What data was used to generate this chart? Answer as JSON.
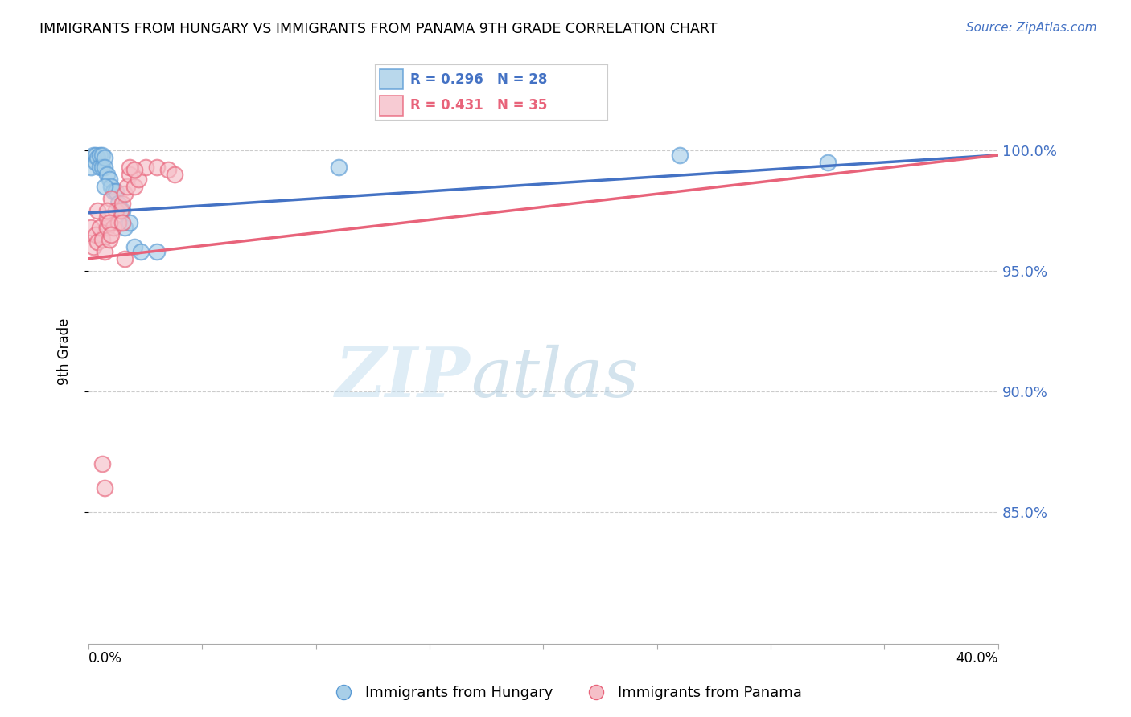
{
  "title": "IMMIGRANTS FROM HUNGARY VS IMMIGRANTS FROM PANAMA 9TH GRADE CORRELATION CHART",
  "source": "Source: ZipAtlas.com",
  "ylabel": "9th Grade",
  "ytick_labels": [
    "100.0%",
    "95.0%",
    "90.0%",
    "85.0%"
  ],
  "ytick_values": [
    1.0,
    0.95,
    0.9,
    0.85
  ],
  "xlim": [
    0.0,
    0.4
  ],
  "ylim": [
    0.795,
    1.038
  ],
  "legend_blue_r": "R = 0.296",
  "legend_blue_n": "N = 28",
  "legend_pink_r": "R = 0.431",
  "legend_pink_n": "N = 35",
  "blue_label": "Immigrants from Hungary",
  "pink_label": "Immigrants from Panama",
  "blue_color": "#a8cfe8",
  "pink_color": "#f5bfc8",
  "blue_edge_color": "#5b9bd5",
  "pink_edge_color": "#e8637a",
  "blue_line_color": "#4472c4",
  "pink_line_color": "#e8637a",
  "blue_trend_x": [
    0.0,
    0.4
  ],
  "blue_trend_y": [
    0.974,
    0.998
  ],
  "pink_trend_x": [
    0.0,
    0.4
  ],
  "pink_trend_y": [
    0.955,
    0.998
  ],
  "hungary_x": [
    0.001,
    0.002,
    0.003,
    0.003,
    0.004,
    0.005,
    0.005,
    0.006,
    0.006,
    0.007,
    0.007,
    0.008,
    0.009,
    0.01,
    0.011,
    0.012,
    0.013,
    0.014,
    0.015,
    0.016,
    0.018,
    0.02,
    0.023,
    0.03,
    0.11,
    0.26,
    0.325,
    0.007
  ],
  "hungary_y": [
    0.993,
    0.998,
    0.998,
    0.995,
    0.997,
    0.998,
    0.993,
    0.998,
    0.993,
    0.997,
    0.993,
    0.99,
    0.988,
    0.985,
    0.983,
    0.983,
    0.978,
    0.975,
    0.975,
    0.968,
    0.97,
    0.96,
    0.958,
    0.958,
    0.993,
    0.998,
    0.995,
    0.985
  ],
  "panama_x": [
    0.001,
    0.002,
    0.003,
    0.004,
    0.004,
    0.005,
    0.006,
    0.007,
    0.008,
    0.008,
    0.009,
    0.01,
    0.011,
    0.012,
    0.013,
    0.014,
    0.015,
    0.016,
    0.016,
    0.017,
    0.018,
    0.02,
    0.022,
    0.025,
    0.03,
    0.035,
    0.038,
    0.006,
    0.007,
    0.008,
    0.009,
    0.01,
    0.015,
    0.018,
    0.02
  ],
  "panama_y": [
    0.968,
    0.96,
    0.965,
    0.962,
    0.975,
    0.968,
    0.963,
    0.958,
    0.968,
    0.972,
    0.963,
    0.98,
    0.968,
    0.975,
    0.97,
    0.975,
    0.978,
    0.982,
    0.955,
    0.985,
    0.99,
    0.985,
    0.988,
    0.993,
    0.993,
    0.992,
    0.99,
    0.87,
    0.86,
    0.975,
    0.97,
    0.965,
    0.97,
    0.993,
    0.992
  ],
  "watermark_zip": "ZIP",
  "watermark_atlas": "atlas",
  "watermark_color_zip": "#c8dff0",
  "watermark_color_atlas": "#b0c8e0"
}
